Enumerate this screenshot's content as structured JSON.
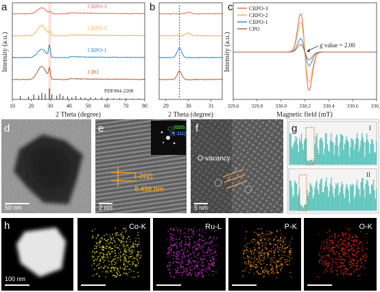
{
  "panels": {
    "a": "a",
    "b": "b",
    "c": "c",
    "d": "d",
    "e": "e",
    "f": "f",
    "g": "g",
    "h": "h"
  },
  "chart_data": [
    {
      "id": "a",
      "type": "line",
      "ylabel": "Intensity (a.u.)",
      "xlabel": "2 Theta (degree)",
      "xlim": [
        10,
        80
      ],
      "xticks": [
        10,
        20,
        30,
        40,
        50,
        60,
        70,
        80
      ],
      "series": [
        {
          "name": "CRPO-3",
          "color": "#e8605c",
          "offset": 3,
          "peaks": [
            [
              25.5,
              0.35
            ],
            [
              30,
              0.1
            ]
          ]
        },
        {
          "name": "CRPO-2",
          "color": "#f0b23c",
          "offset": 2,
          "peaks": [
            [
              25.5,
              0.6
            ],
            [
              30,
              0.2
            ]
          ]
        },
        {
          "name": "CRPO-1",
          "color": "#2f7fc0",
          "offset": 1,
          "peaks": [
            [
              25.5,
              0.5
            ],
            [
              29.6,
              0.7
            ]
          ]
        },
        {
          "name": "CPO",
          "color": "#b5532a",
          "offset": 0,
          "peaks": [
            [
              25.5,
              0.8
            ],
            [
              29.6,
              0.6
            ]
          ]
        }
      ],
      "reference": {
        "label": "PDF#84-2208",
        "sticks": [
          [
            14.2,
            0.3
          ],
          [
            18.5,
            0.25
          ],
          [
            21.3,
            0.45
          ],
          [
            24.0,
            0.35
          ],
          [
            25.6,
            0.6
          ],
          [
            27.4,
            0.5
          ],
          [
            29.6,
            1.0
          ],
          [
            30.9,
            0.45
          ],
          [
            33.5,
            0.35
          ],
          [
            35.1,
            0.5
          ],
          [
            36.8,
            0.3
          ],
          [
            39.2,
            0.25
          ],
          [
            41.5,
            0.2
          ],
          [
            43.6,
            0.3
          ],
          [
            46.2,
            0.2
          ],
          [
            48.5,
            0.15
          ],
          [
            51.3,
            0.2
          ],
          [
            54.0,
            0.15
          ],
          [
            57.2,
            0.2
          ],
          [
            60.4,
            0.15
          ],
          [
            63.5,
            0.1
          ],
          [
            66.8,
            0.12
          ],
          [
            70.1,
            0.1
          ],
          [
            73.6,
            0.08
          ],
          [
            77.0,
            0.08
          ]
        ]
      },
      "highlight_x": [
        29,
        30.6
      ]
    },
    {
      "id": "b",
      "type": "line",
      "xlabel": "2 Theta (degree)",
      "xlim": [
        28.7,
        31.5
      ],
      "xticks": [
        29,
        30,
        31
      ],
      "dashed_x": 29.6,
      "series_ref": "a"
    },
    {
      "id": "c",
      "type": "line",
      "ylabel": "Intensity (a.u.)",
      "xlabel": "Magnetic field (mT)",
      "xlim": [
        329.6,
        330.8
      ],
      "xticks": [
        "329.6",
        "329.8",
        "330.0",
        "330.2",
        "330.4",
        "330.6",
        "330.8"
      ],
      "center": 330.2,
      "annotation": "g value = 2.00",
      "series": [
        {
          "name": "CRPO-3",
          "color": "#e8605c",
          "amplitude": 1.0
        },
        {
          "name": "CRPO-2",
          "color": "#f0b23c",
          "amplitude": 0.78
        },
        {
          "name": "CRPO-1",
          "color": "#2f7fc0",
          "amplitude": 0.35
        },
        {
          "name": "CPO",
          "color": "#b5532a",
          "amplitude": 0.2
        }
      ]
    },
    {
      "id": "g",
      "type": "bar",
      "subpanels": [
        "I",
        "II"
      ]
    }
  ],
  "micro": {
    "d_scale": "50 nm",
    "e_fft_1": "(020)",
    "e_fft_2": "(-111)",
    "e_plane": "(-202)",
    "e_dspacing": "0.458 nm",
    "e_scale": "2 nm",
    "f_label": "O-vacancy",
    "f_I": "I",
    "f_II": "II",
    "f_scale": "5 nm",
    "h_scale": "100 nm",
    "h_maps": [
      {
        "label": "Co-K",
        "color": "#e8e020"
      },
      {
        "label": "Ru-L",
        "color": "#d030d0"
      },
      {
        "label": "P-K",
        "color": "#f08a10"
      },
      {
        "label": "O-K",
        "color": "#ff2020"
      }
    ]
  }
}
